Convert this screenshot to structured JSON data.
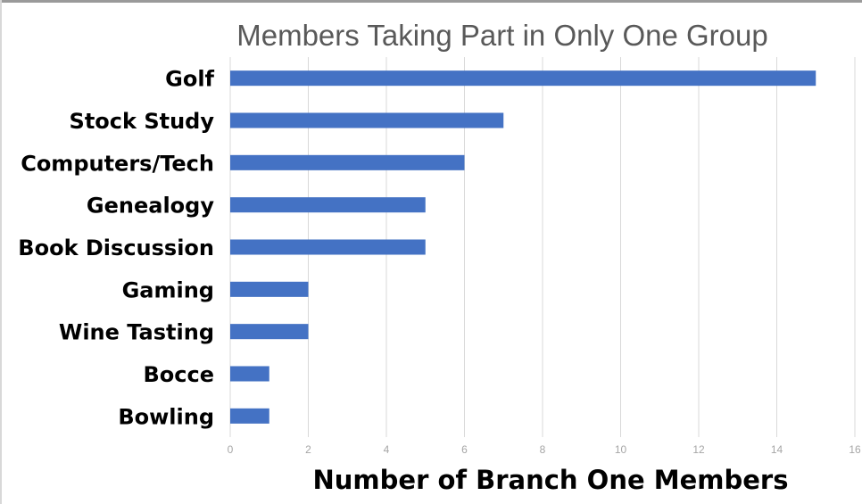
{
  "chart_data": {
    "type": "bar",
    "orientation": "horizontal",
    "title": "Members Taking Part in Only One Group",
    "xlabel": "Number of Branch One Members",
    "ylabel": "",
    "categories": [
      "Golf",
      "Stock Study",
      "Computers/Tech",
      "Genealogy",
      "Book Discussion",
      "Gaming",
      "Wine Tasting",
      "Bocce",
      "Bowling"
    ],
    "values": [
      15,
      7,
      6,
      5,
      5,
      2,
      2,
      1,
      1
    ],
    "xlim": [
      0,
      16
    ],
    "xticks": [
      "0",
      "2",
      "4",
      "6",
      "8",
      "10",
      "12",
      "14",
      "16"
    ],
    "grid": true,
    "legend": "none",
    "colors": {
      "bar": "#4472C4",
      "grid": "#d9d9d9",
      "title": "#595959",
      "tick": "#a6a6a6",
      "label": "#000000"
    }
  }
}
